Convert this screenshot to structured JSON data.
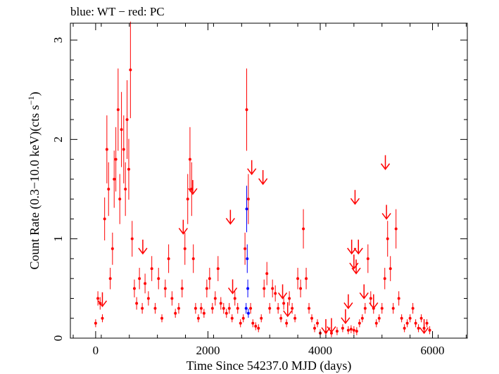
{
  "chart_data": {
    "type": "scatter",
    "title": "blue: WT − red: PC",
    "xlabel": "Time Since 54237.0 MJD (days)",
    "ylabel_main": "Count Rate (0.3−10.0 keV)(cts s",
    "ylabel_sup": "−1",
    "ylabel_end": ")",
    "xlim": [
      -450,
      6620
    ],
    "ylim": [
      0,
      3.17
    ],
    "x_ticks": [
      0,
      2000,
      4000,
      6000
    ],
    "y_ticks": [
      0,
      1,
      2,
      3
    ],
    "x_ticks_labels": [
      "0",
      "2000",
      "4000",
      "6000"
    ],
    "y_ticks_labels": [
      "0",
      "1",
      "2",
      "3"
    ],
    "colors": {
      "WT": "#0000ff",
      "PC": "#ff0000",
      "axis": "#000000"
    },
    "series": [
      {
        "name": "PC",
        "color": "#ff0000",
        "x": [
          0,
          40,
          80,
          120,
          160,
          200,
          230,
          260,
          300,
          330,
          360,
          400,
          430,
          460,
          500,
          530,
          560,
          590,
          620,
          650,
          690,
          730,
          780,
          830,
          880,
          940,
          1000,
          1060,
          1120,
          1180,
          1240,
          1300,
          1360,
          1420,
          1480,
          1540,
          1590,
          1640,
          1680,
          1710,
          1740,
          1780,
          1830,
          1880,
          1930,
          1980,
          2030,
          2080,
          2130,
          2180,
          2230,
          2280,
          2330,
          2380,
          2430,
          2480,
          2530,
          2580,
          2630,
          2660,
          2690,
          2720,
          2760,
          2800,
          2850,
          2900,
          2950,
          3000,
          3050,
          3100,
          3150,
          3200,
          3250,
          3300,
          3350,
          3400,
          3450,
          3500,
          3550,
          3600,
          3650,
          3700,
          3750,
          3800,
          3850,
          3900,
          3950,
          4000,
          4100,
          4200,
          4300,
          4400,
          4500,
          4550,
          4600,
          4650,
          4700,
          4750,
          4800,
          4850,
          4900,
          4950,
          5000,
          5050,
          5100,
          5150,
          5200,
          5250,
          5300,
          5350,
          5400,
          5450,
          5500,
          5550,
          5600,
          5650,
          5700,
          5750,
          5800,
          5850,
          5900,
          5950
        ],
        "y": [
          0.15,
          0.4,
          0.35,
          0.2,
          1.2,
          1.9,
          1.5,
          0.6,
          0.9,
          1.6,
          1.8,
          2.3,
          1.4,
          2.1,
          1.9,
          1.5,
          2.2,
          1.7,
          2.7,
          1.0,
          0.5,
          0.35,
          0.6,
          0.3,
          0.55,
          0.4,
          0.7,
          0.3,
          0.6,
          0.2,
          0.5,
          0.8,
          0.4,
          0.25,
          0.3,
          0.5,
          0.9,
          1.4,
          1.8,
          1.5,
          0.8,
          0.3,
          0.2,
          0.3,
          0.25,
          0.5,
          0.6,
          0.3,
          0.4,
          0.7,
          0.35,
          0.3,
          0.25,
          0.3,
          0.2,
          0.4,
          0.3,
          0.15,
          0.2,
          0.9,
          2.3,
          1.4,
          0.3,
          0.15,
          0.12,
          0.1,
          0.2,
          0.5,
          0.65,
          0.3,
          0.5,
          0.45,
          0.3,
          0.2,
          0.35,
          0.15,
          0.4,
          0.3,
          0.2,
          0.6,
          0.5,
          1.1,
          0.6,
          0.3,
          0.2,
          0.1,
          0.15,
          0.05,
          0.06,
          0.05,
          0.07,
          0.1,
          0.08,
          0.09,
          0.08,
          0.07,
          0.15,
          0.2,
          0.3,
          0.8,
          0.4,
          0.3,
          0.15,
          0.2,
          0.3,
          0.6,
          1.0,
          0.7,
          0.3,
          1.1,
          0.4,
          0.2,
          0.1,
          0.15,
          0.2,
          0.3,
          0.15,
          0.1,
          0.2,
          0.1,
          0.15,
          0.08
        ]
      },
      {
        "name": "WT",
        "color": "#0000ff",
        "x": [
          2680,
          2690,
          2700,
          2710,
          2720
        ],
        "y": [
          0.3,
          1.3,
          0.8,
          0.5,
          0.25
        ]
      }
    ],
    "upper_limits_PC": {
      "x": [
        120,
        840,
        1560,
        1730,
        2400,
        2440,
        2780,
        2980,
        3330,
        3420,
        4100,
        4200,
        4450,
        4500,
        4560,
        4600,
        4620,
        4640,
        4680,
        4780,
        4950,
        5160,
        5180,
        5850
      ],
      "y": [
        0.32,
        0.85,
        1.05,
        1.45,
        1.15,
        0.45,
        1.65,
        1.55,
        0.4,
        0.22,
        0.05,
        0.06,
        0.15,
        0.3,
        0.85,
        0.7,
        1.35,
        0.65,
        0.85,
        0.4,
        0.3,
        1.7,
        1.2,
        0.05
      ]
    }
  }
}
